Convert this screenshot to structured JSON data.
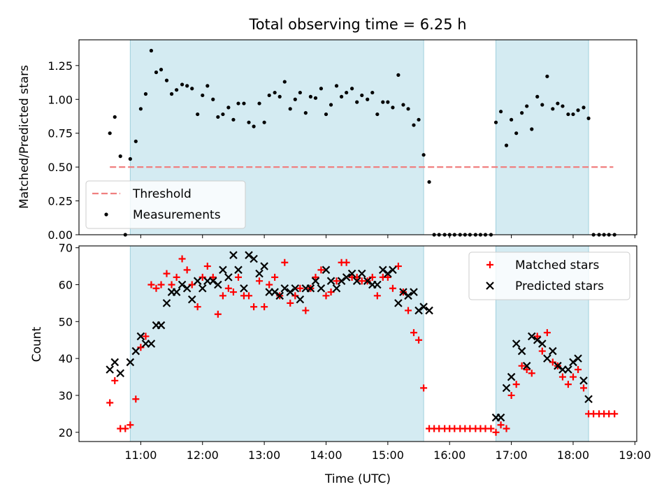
{
  "chart_data": {
    "type": "scatter",
    "title": "Total observing time = 6.25 h",
    "xlabel": "Time (UTC)",
    "xlim": [
      10.0,
      19.03
    ],
    "xticks": [
      {
        "value": 11,
        "label": "11:00"
      },
      {
        "value": 12,
        "label": "12:00"
      },
      {
        "value": 13,
        "label": "13:00"
      },
      {
        "value": 14,
        "label": "14:00"
      },
      {
        "value": 15,
        "label": "15:00"
      },
      {
        "value": 16,
        "label": "16:00"
      },
      {
        "value": 17,
        "label": "17:00"
      },
      {
        "value": 18,
        "label": "18:00"
      },
      {
        "value": 19,
        "label": "19:00"
      }
    ],
    "observing_windows": [
      [
        10.83,
        15.58
      ],
      [
        16.75,
        18.25
      ]
    ],
    "window_color": "#add8e6",
    "panels": [
      {
        "ylabel": "Matched/Predicted stars",
        "ylim": [
          0,
          1.44
        ],
        "yticks": [
          {
            "value": 0,
            "label": "0.00"
          },
          {
            "value": 0.25,
            "label": "0.25"
          },
          {
            "value": 0.5,
            "label": "0.50"
          },
          {
            "value": 0.75,
            "label": "0.75"
          },
          {
            "value": 1.0,
            "label": "1.00"
          },
          {
            "value": 1.25,
            "label": "1.25"
          }
        ],
        "legend_position": "lower-left",
        "threshold": {
          "name": "Threshold",
          "value": 0.5,
          "x": [
            10.5,
            18.65
          ],
          "color": "#f08080"
        },
        "series": [
          {
            "name": "Measurements",
            "color": "#000000",
            "marker": "dot",
            "x": [
              10.5,
              10.58,
              10.67,
              10.75,
              10.83,
              10.92,
              11.0,
              11.08,
              11.17,
              11.25,
              11.33,
              11.42,
              11.5,
              11.58,
              11.67,
              11.75,
              11.83,
              11.92,
              12.0,
              12.08,
              12.17,
              12.25,
              12.33,
              12.42,
              12.5,
              12.58,
              12.67,
              12.75,
              12.83,
              12.92,
              13.0,
              13.08,
              13.17,
              13.25,
              13.33,
              13.42,
              13.5,
              13.58,
              13.67,
              13.75,
              13.83,
              13.92,
              14.0,
              14.08,
              14.17,
              14.25,
              14.33,
              14.42,
              14.5,
              14.58,
              14.67,
              14.75,
              14.83,
              14.92,
              15.0,
              15.08,
              15.17,
              15.25,
              15.33,
              15.42,
              15.5,
              15.58,
              15.67,
              15.75,
              15.83,
              15.92,
              16.0,
              16.08,
              16.17,
              16.25,
              16.33,
              16.42,
              16.5,
              16.58,
              16.67,
              16.75,
              16.83,
              16.92,
              17.0,
              17.08,
              17.17,
              17.25,
              17.33,
              17.42,
              17.5,
              17.58,
              17.67,
              17.75,
              17.83,
              17.92,
              18.0,
              18.08,
              18.17,
              18.25,
              18.33,
              18.42,
              18.5,
              18.58,
              18.67
            ],
            "y": [
              0.75,
              0.87,
              0.58,
              0.0,
              0.56,
              0.69,
              0.93,
              1.04,
              1.36,
              1.2,
              1.22,
              1.14,
              1.04,
              1.07,
              1.11,
              1.1,
              1.08,
              0.89,
              1.03,
              1.1,
              1.0,
              0.87,
              0.89,
              0.94,
              0.85,
              0.97,
              0.97,
              0.83,
              0.8,
              0.97,
              0.83,
              1.03,
              1.05,
              1.02,
              1.13,
              0.93,
              1.0,
              1.05,
              0.9,
              1.02,
              1.01,
              1.08,
              0.89,
              0.96,
              1.1,
              1.02,
              1.05,
              1.08,
              0.98,
              1.03,
              1.0,
              1.05,
              0.89,
              0.98,
              0.98,
              0.94,
              1.18,
              0.96,
              0.93,
              0.81,
              0.85,
              0.59,
              0.39,
              0.0,
              0.0,
              0.0,
              0.0,
              0.0,
              0.0,
              0.0,
              0.0,
              0.0,
              0.0,
              0.0,
              0.0,
              0.83,
              0.91,
              0.66,
              0.85,
              0.75,
              0.9,
              0.95,
              0.78,
              1.02,
              0.96,
              1.17,
              0.93,
              0.97,
              0.95,
              0.89,
              0.89,
              0.92,
              0.94,
              0.86,
              0.0,
              0.0,
              0.0,
              0.0,
              0.0
            ]
          }
        ]
      },
      {
        "ylabel": "Count",
        "ylim": [
          17.5,
          70.5
        ],
        "yticks": [
          {
            "value": 20,
            "label": "20"
          },
          {
            "value": 30,
            "label": "30"
          },
          {
            "value": 40,
            "label": "40"
          },
          {
            "value": 50,
            "label": "50"
          },
          {
            "value": 60,
            "label": "60"
          },
          {
            "value": 70,
            "label": "70"
          }
        ],
        "legend_position": "upper-right",
        "series": [
          {
            "name": "Matched stars",
            "color": "#ff0000",
            "marker": "plus",
            "x": [
              10.5,
              10.58,
              10.67,
              10.75,
              10.83,
              10.92,
              11.0,
              11.08,
              11.17,
              11.25,
              11.33,
              11.42,
              11.5,
              11.58,
              11.67,
              11.75,
              11.83,
              11.92,
              12.0,
              12.08,
              12.17,
              12.25,
              12.33,
              12.42,
              12.5,
              12.58,
              12.67,
              12.75,
              12.83,
              12.92,
              13.0,
              13.08,
              13.17,
              13.25,
              13.33,
              13.42,
              13.5,
              13.58,
              13.67,
              13.75,
              13.83,
              13.92,
              14.0,
              14.08,
              14.17,
              14.25,
              14.33,
              14.42,
              14.5,
              14.58,
              14.67,
              14.75,
              14.83,
              14.92,
              15.0,
              15.08,
              15.17,
              15.25,
              15.33,
              15.42,
              15.5,
              15.58,
              15.67,
              15.75,
              15.83,
              15.92,
              16.0,
              16.08,
              16.17,
              16.25,
              16.33,
              16.42,
              16.5,
              16.58,
              16.67,
              16.75,
              16.83,
              16.92,
              17.0,
              17.08,
              17.17,
              17.25,
              17.33,
              17.42,
              17.5,
              17.58,
              17.67,
              17.75,
              17.83,
              17.92,
              18.0,
              18.08,
              18.17,
              18.25,
              18.33,
              18.42,
              18.5,
              18.58,
              18.67
            ],
            "y": [
              28,
              34,
              21,
              21,
              22,
              29,
              43,
              46,
              60,
              59,
              60,
              63,
              60,
              62,
              67,
              64,
              60,
              54,
              62,
              65,
              62,
              52,
              57,
              59,
              58,
              62,
              57,
              57,
              54,
              61,
              54,
              60,
              62,
              57,
              66,
              55,
              57,
              59,
              53,
              59,
              62,
              64,
              57,
              58,
              61,
              66,
              66,
              62,
              62,
              61,
              61,
              62,
              57,
              62,
              62,
              59,
              65,
              58,
              53,
              47,
              45,
              32,
              21,
              21,
              21,
              21,
              21,
              21,
              21,
              21,
              21,
              21,
              21,
              21,
              21,
              20,
              22,
              21,
              30,
              33,
              38,
              37,
              36,
              46,
              42,
              47,
              39,
              38,
              35,
              33,
              35,
              37,
              32,
              25,
              25,
              25,
              25,
              25,
              25
            ]
          },
          {
            "name": "Predicted stars",
            "color": "#000000",
            "marker": "x",
            "x": [
              10.5,
              10.58,
              10.67,
              10.83,
              10.92,
              11.0,
              11.08,
              11.17,
              11.25,
              11.33,
              11.42,
              11.5,
              11.58,
              11.67,
              11.75,
              11.83,
              11.92,
              12.0,
              12.08,
              12.17,
              12.25,
              12.33,
              12.42,
              12.5,
              12.58,
              12.67,
              12.75,
              12.83,
              12.92,
              13.0,
              13.08,
              13.17,
              13.25,
              13.33,
              13.42,
              13.5,
              13.58,
              13.67,
              13.75,
              13.83,
              13.92,
              14.0,
              14.08,
              14.17,
              14.25,
              14.33,
              14.42,
              14.5,
              14.58,
              14.67,
              14.75,
              14.83,
              14.92,
              15.0,
              15.08,
              15.17,
              15.25,
              15.33,
              15.42,
              15.5,
              15.58,
              15.67,
              16.75,
              16.83,
              16.92,
              17.0,
              17.08,
              17.17,
              17.25,
              17.33,
              17.42,
              17.5,
              17.58,
              17.67,
              17.75,
              17.83,
              17.92,
              18.0,
              18.08,
              18.17,
              18.25
            ],
            "y": [
              37,
              39,
              36,
              39,
              42,
              46,
              44,
              44,
              49,
              49,
              55,
              58,
              58,
              60,
              59,
              56,
              61,
              59,
              61,
              61,
              60,
              64,
              62,
              68,
              64,
              59,
              68,
              67,
              63,
              65,
              58,
              58,
              57,
              59,
              58,
              59,
              56,
              59,
              59,
              61,
              59,
              64,
              61,
              59,
              61,
              62,
              63,
              61,
              63,
              61,
              60,
              60,
              64,
              63,
              64,
              55,
              58,
              57,
              58,
              53,
              54,
              53,
              24,
              24,
              32,
              35,
              44,
              42,
              38,
              46,
              45,
              44,
              40,
              42,
              38,
              37,
              37,
              39,
              40,
              34,
              29
            ]
          }
        ]
      }
    ]
  }
}
